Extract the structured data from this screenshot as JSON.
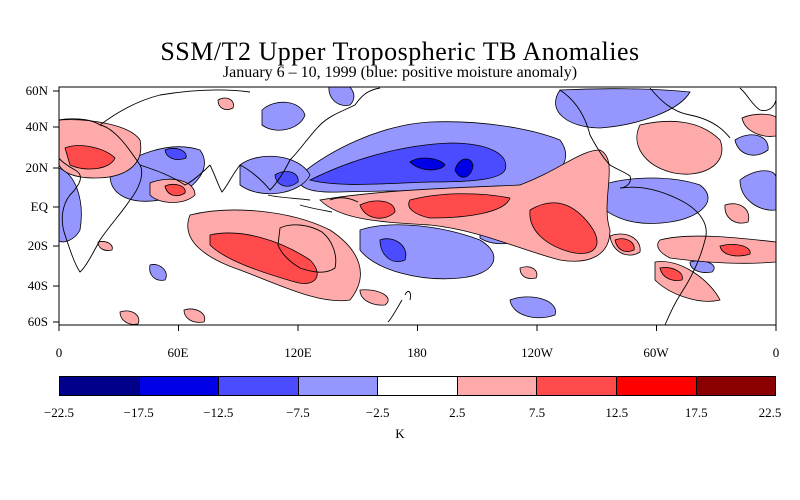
{
  "title": "SSM/T2 Upper Tropospheric TB Anomalies",
  "subtitle": "January 6 – 10, 1999 (blue: positive moisture anomaly)",
  "map": {
    "lat_labels": [
      "60N",
      "40N",
      "20N",
      "EQ",
      "20S",
      "40S",
      "60S"
    ],
    "lon_labels": [
      "0",
      "60E",
      "120E",
      "180",
      "120W",
      "60W",
      "0"
    ]
  },
  "colorbar": {
    "colors": [
      "#00008b",
      "#0000e6",
      "#4b4bff",
      "#9696ff",
      "#ffffff",
      "#ffaaaa",
      "#ff4b4b",
      "#ff0000",
      "#8b0000"
    ],
    "tick_labels": [
      "−22.5",
      "−17.5",
      "−12.5",
      "−7.5",
      "−2.5",
      "2.5",
      "7.5",
      "12.5",
      "17.5",
      "22.5"
    ],
    "unit": "K"
  }
}
